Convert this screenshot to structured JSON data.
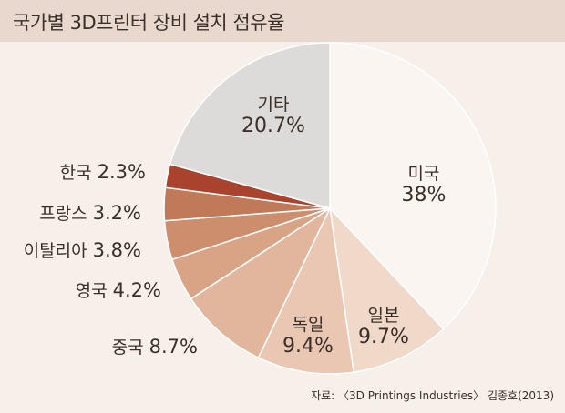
{
  "title": "국가별 3D프린터 장비 설치 점유율",
  "source": "자료: 〈3D Printings Industries〉 김종호(2013)",
  "chart_data": {
    "type": "pie",
    "title": "국가별 3D프린터 장비 설치 점유율",
    "slices": [
      {
        "label": "미국",
        "value": 38,
        "value_label": "38%",
        "color": "#fbf5f1"
      },
      {
        "label": "일본",
        "value": 9.7,
        "value_label": "9.7%",
        "color": "#f1d9ca"
      },
      {
        "label": "독일",
        "value": 9.4,
        "value_label": "9.4%",
        "color": "#e9c7b3"
      },
      {
        "label": "중국",
        "value": 8.7,
        "value_label": "8.7%",
        "color": "#e2b69c"
      },
      {
        "label": "영국",
        "value": 4.2,
        "value_label": "4.2%",
        "color": "#d9a385"
      },
      {
        "label": "이탈리아",
        "value": 3.8,
        "value_label": "3.8%",
        "color": "#cd8e6e"
      },
      {
        "label": "프랑스",
        "value": 3.2,
        "value_label": "3.2%",
        "color": "#c17a59"
      },
      {
        "label": "한국",
        "value": 2.3,
        "value_label": "2.3%",
        "color": "#a9432d"
      },
      {
        "label": "기타",
        "value": 20.7,
        "value_label": "20.7%",
        "color": "#dcdbd9"
      }
    ]
  }
}
